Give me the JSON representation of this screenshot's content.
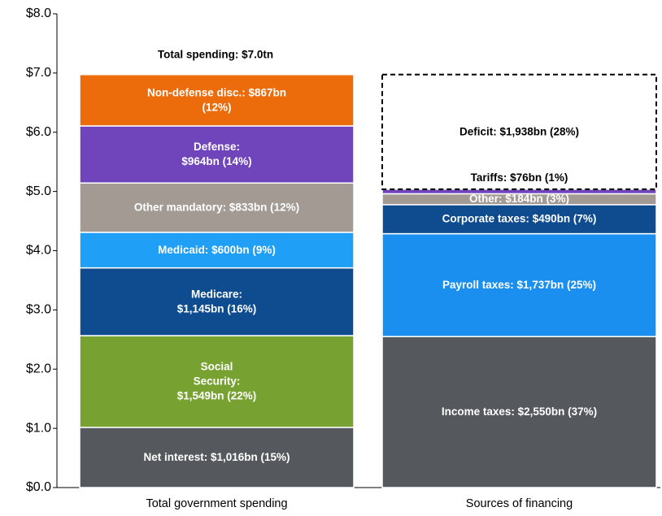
{
  "chart_data": {
    "type": "stacked-bar",
    "annotation": "Total spending: $7.0tn",
    "categories": [
      "Total government spending",
      "Sources of financing"
    ],
    "ylim": [
      0,
      8
    ],
    "yticks": [
      {
        "value": 0,
        "label": "$0.0"
      },
      {
        "value": 1,
        "label": "$1.0"
      },
      {
        "value": 2,
        "label": "$2.0"
      },
      {
        "value": 3,
        "label": "$3.0"
      },
      {
        "value": 4,
        "label": "$4.0"
      },
      {
        "value": 5,
        "label": "$5.0"
      },
      {
        "value": 6,
        "label": "$6.0"
      },
      {
        "value": 7,
        "label": "$7.0"
      },
      {
        "value": 8,
        "label": "$8.0"
      }
    ],
    "stacks": [
      {
        "values": [
          1.016,
          1.549,
          1.145,
          0.6,
          0.833,
          0.964,
          0.867
        ],
        "value_labels": [
          "Net interest: $1,016bn (15%)",
          "Social\nSecurity:\n$1,549bn (22%)",
          "Medicare:\n$1,145bn (16%)",
          "Medicaid: $600bn (9%)",
          "Other mandatory: $833bn (12%)",
          "Defense:\n$964bn (14%)",
          "Non-defense disc.: $867bn\n(12%)"
        ],
        "colors": [
          "#55595d",
          "#77a232",
          "#0f4c8f",
          "#1f9ff5",
          "#a39a94",
          "#7045bb",
          "#ec6c0c"
        ],
        "label_colors": [
          "#ffffff",
          "#ffffff",
          "#ffffff",
          "#ffffff",
          "#ffffff",
          "#ffffff",
          "#ffffff"
        ],
        "styles": [
          "solid",
          "solid",
          "solid",
          "solid",
          "solid",
          "solid",
          "solid"
        ]
      },
      {
        "values": [
          2.55,
          1.737,
          0.49,
          0.184,
          0.076,
          1.938
        ],
        "value_labels": [
          "Income taxes: $2,550bn (37%)",
          "Payroll taxes: $1,737bn (25%)",
          "Corporate taxes: $490bn (7%)",
          "Other: $184bn (3%)",
          "Tariffs: $76bn (1%)",
          "Deficit: $1,938bn (28%)"
        ],
        "colors": [
          "#55595d",
          "#1a8ff0",
          "#0f4c8f",
          "#a39a94",
          "#7045bb",
          "#ffffff"
        ],
        "label_colors": [
          "#ffffff",
          "#ffffff",
          "#ffffff",
          "#ffffff",
          "#000000",
          "#000000"
        ],
        "styles": [
          "solid",
          "solid",
          "solid",
          "solid",
          "solid",
          "dashed"
        ]
      }
    ]
  }
}
